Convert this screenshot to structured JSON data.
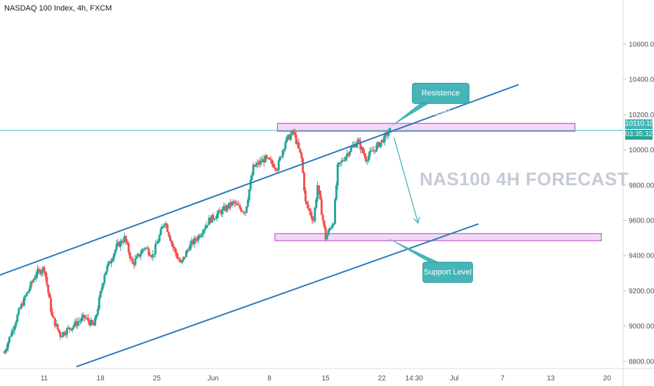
{
  "header": {
    "symbol_title": "NASDAQ 100 Index, 4h, FXCM"
  },
  "watermark": "NAS100 4H FORECAST",
  "annotations": {
    "resistance": "Resistence Level",
    "support": "Support Level"
  },
  "price_axis": {
    "current_price": "10110.15",
    "countdown": "03:35:32",
    "current_color": "#45b5b8",
    "countdown_color": "#26a69a"
  },
  "colors": {
    "up": "#26a69a",
    "down": "#ef5350",
    "channel": "#2e78b7",
    "zone_fill": "#f3d9f5",
    "zone_border": "#b23bc4",
    "callout": "#45b5b8"
  },
  "chart_data": {
    "type": "candlestick",
    "title": "NASDAQ 100 Index, 4h, FXCM",
    "ylim": [
      8760,
      10850
    ],
    "y_ticks": [
      8800,
      9000,
      9200,
      9400,
      9600,
      9800,
      10000,
      10200,
      10400,
      10600
    ],
    "y_tick_labels": [
      "8800.00",
      "9000.00",
      "9200.00",
      "9400.00",
      "9600.00",
      "9800.00",
      "10000.00",
      "10200.00",
      "10400.00",
      "10600.00"
    ],
    "x_tick_labels": [
      "11",
      "18",
      "25",
      "Jun",
      "8",
      "15",
      "22",
      "14:30",
      "Jul",
      "7",
      "13",
      "20"
    ],
    "x_tick_days": [
      11,
      18,
      25,
      32,
      39,
      46,
      53,
      57,
      62,
      68,
      74,
      81
    ],
    "day_range": [
      5.5,
      83
    ],
    "last_price": 10110.15,
    "path_points": [
      [
        6.0,
        8850
      ],
      [
        8.0,
        9100
      ],
      [
        10.0,
        9300
      ],
      [
        11.0,
        9330
      ],
      [
        12.0,
        9050
      ],
      [
        13.0,
        8950
      ],
      [
        14.5,
        9000
      ],
      [
        16.0,
        9050
      ],
      [
        17.2,
        9000
      ],
      [
        18.5,
        9300
      ],
      [
        20.0,
        9450
      ],
      [
        21.0,
        9500
      ],
      [
        22.0,
        9350
      ],
      [
        23.5,
        9450
      ],
      [
        24.5,
        9400
      ],
      [
        26.0,
        9600
      ],
      [
        27.0,
        9450
      ],
      [
        28.0,
        9350
      ],
      [
        29.0,
        9450
      ],
      [
        30.0,
        9500
      ],
      [
        31.5,
        9600
      ],
      [
        33.0,
        9650
      ],
      [
        34.5,
        9700
      ],
      [
        35.0,
        9680
      ],
      [
        36.0,
        9650
      ],
      [
        37.0,
        9900
      ],
      [
        38.5,
        9950
      ],
      [
        40.0,
        9900
      ],
      [
        41.0,
        10050
      ],
      [
        42.0,
        10100
      ],
      [
        43.0,
        9950
      ],
      [
        43.5,
        9700
      ],
      [
        44.5,
        9600
      ],
      [
        45.0,
        9800
      ],
      [
        46.0,
        9500
      ],
      [
        47.0,
        9600
      ],
      [
        47.5,
        9900
      ],
      [
        49.0,
        10000
      ],
      [
        50.0,
        10050
      ],
      [
        51.0,
        9950
      ],
      [
        52.0,
        10000
      ],
      [
        53.0,
        10050
      ],
      [
        54.0,
        10110
      ]
    ],
    "channel_upper": [
      [
        5.5,
        9290
      ],
      [
        70.0,
        10370
      ]
    ],
    "channel_lower": [
      [
        15.0,
        8770
      ],
      [
        65.0,
        9580
      ]
    ],
    "resistance_zone": {
      "day_range": [
        40.0,
        77.0
      ],
      "price_range": [
        10105,
        10150
      ]
    },
    "support_zone": {
      "day_range": [
        39.7,
        80.3
      ],
      "price_range": [
        9485,
        9525
      ]
    },
    "forecast_arrow": {
      "from": [
        54.5,
        10070
      ],
      "to": [
        57.5,
        9585
      ]
    }
  }
}
